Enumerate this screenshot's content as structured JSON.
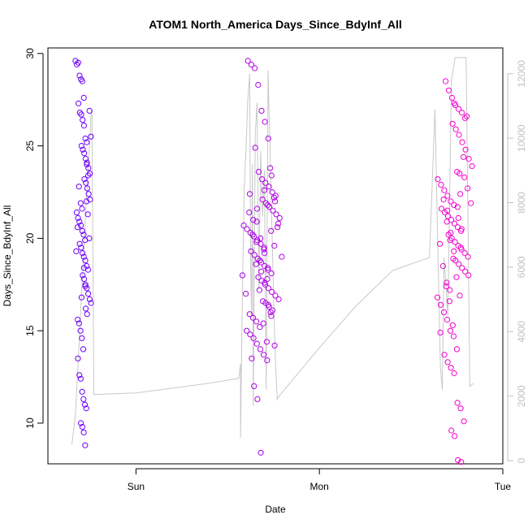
{
  "chart_data": {
    "type": "scatter",
    "title": "ATOM1 North_America Days_Since_BdyInf_All",
    "xlabel": "Date",
    "ylabel": "Days_Since_BdyInf_All",
    "x_ticks": [
      "Sun",
      "Mon",
      "Tue"
    ],
    "y_ticks": [
      10,
      15,
      20,
      25,
      30
    ],
    "y_range": [
      7.8,
      30.3
    ],
    "y2_ticks": [
      0,
      2000,
      4000,
      6000,
      8000,
      10000,
      12000
    ],
    "y2_range": [
      -100,
      12800
    ],
    "x_unit": "days from Sun 00:00",
    "x_range": [
      -0.48,
      2.0
    ],
    "colors": {
      "points_start": "#6a00ff",
      "points_end": "#ff00cc",
      "line": "#c8c8c8",
      "right_axis": "#c0c0c0"
    },
    "clusters": [
      {
        "x_start": -0.33,
        "x_end": -0.24,
        "values": [
          29.6,
          29.4,
          29.5,
          28.8,
          28.6,
          28.5,
          27.6,
          27.3,
          26.8,
          26.7,
          26.4,
          26.1,
          25.4,
          25.2,
          25.0,
          24.8,
          24.6,
          24.3,
          24.1,
          23.8,
          23.5,
          23.2,
          23.0,
          22.7,
          22.4,
          22.1,
          21.9,
          21.6,
          21.4,
          21.1,
          20.9,
          20.7,
          20.4,
          20.2,
          19.9,
          19.7,
          19.5,
          19.2,
          19.0,
          18.8,
          18.5,
          18.3,
          18.0,
          17.8,
          17.5,
          17.3,
          17.0,
          16.7,
          16.5,
          16.2,
          15.9,
          15.6,
          15.4,
          15.0,
          14.6,
          14.0,
          13.5,
          12.6,
          12.4,
          11.7,
          11.3,
          11.0,
          10.8,
          10.0,
          9.8,
          9.5,
          8.8,
          22.0,
          21.3,
          20.0,
          18.4,
          17.4,
          24.0,
          23.4,
          26.9,
          25.5,
          16.8,
          19.3,
          20.6,
          22.8
        ]
      },
      {
        "x_start": 0.58,
        "x_end": 0.8,
        "values": [
          29.6,
          29.4,
          29.2,
          28.3,
          26.9,
          26.3,
          25.4,
          24.9,
          23.6,
          23.2,
          23.0,
          22.8,
          22.5,
          22.3,
          22.1,
          21.9,
          21.7,
          21.5,
          21.3,
          21.1,
          20.9,
          20.7,
          20.5,
          20.3,
          20.1,
          19.9,
          19.7,
          19.5,
          19.3,
          19.1,
          18.9,
          18.7,
          18.5,
          18.3,
          18.1,
          17.9,
          17.7,
          17.5,
          17.3,
          17.1,
          16.9,
          16.7,
          16.5,
          16.3,
          16.1,
          15.9,
          15.7,
          15.5,
          15.2,
          15.0,
          14.8,
          14.6,
          14.3,
          14.0,
          13.7,
          13.4,
          12.0,
          11.3,
          8.4,
          22.6,
          21.8,
          20.4,
          19.6,
          18.2,
          17.6,
          16.4,
          23.4,
          22.0,
          20.8,
          19.0,
          18.0,
          17.0,
          21.4,
          20.2,
          18.6,
          17.2,
          16.6,
          22.4,
          21.0,
          19.8,
          18.8,
          15.4,
          14.4,
          23.8,
          21.6,
          20.0,
          19.4,
          17.8,
          16.0,
          22.2,
          20.6,
          19.2,
          18.4,
          15.8,
          14.2,
          13.5
        ]
      },
      {
        "x_start": 1.63,
        "x_end": 1.84,
        "values": [
          28.5,
          28.0,
          27.6,
          27.2,
          27.0,
          26.8,
          26.5,
          26.2,
          25.9,
          25.6,
          25.2,
          24.8,
          24.3,
          23.9,
          23.5,
          23.2,
          22.9,
          22.6,
          22.3,
          22.0,
          21.8,
          21.6,
          21.4,
          21.2,
          21.0,
          20.8,
          20.6,
          20.4,
          20.2,
          20.0,
          19.8,
          19.6,
          19.4,
          19.2,
          19.0,
          18.8,
          18.6,
          18.4,
          18.2,
          18.0,
          17.6,
          17.2,
          16.8,
          16.4,
          16.0,
          15.6,
          15.0,
          14.7,
          14.0,
          13.7,
          13.3,
          13.0,
          12.7,
          11.1,
          10.8,
          10.1,
          9.6,
          9.3,
          8.0,
          7.9,
          23.3,
          22.7,
          21.9,
          21.1,
          20.5,
          19.7,
          18.5,
          17.4,
          16.6,
          15.3,
          14.9,
          22.1,
          20.9,
          19.9,
          18.9,
          17.9,
          16.9,
          21.5,
          20.3,
          19.3,
          23.6,
          22.4,
          24.4,
          26.6,
          27.3,
          21.7,
          19.5
        ]
      }
    ],
    "line_series": [
      [
        -0.35,
        500
      ],
      [
        -0.33,
        1400
      ],
      [
        -0.32,
        2500
      ],
      [
        -0.31,
        3600
      ],
      [
        -0.3,
        4800
      ],
      [
        -0.29,
        5900
      ],
      [
        -0.28,
        7000
      ],
      [
        -0.27,
        8100
      ],
      [
        -0.26,
        9100
      ],
      [
        -0.25,
        10000
      ],
      [
        -0.245,
        10800
      ],
      [
        -0.24,
        10900
      ],
      [
        -0.23,
        2050
      ],
      [
        0.0,
        2100
      ],
      [
        0.4,
        2400
      ],
      [
        0.56,
        2550
      ],
      [
        0.57,
        3000
      ],
      [
        0.57,
        700
      ],
      [
        0.58,
        5200
      ],
      [
        0.59,
        8400
      ],
      [
        0.6,
        9700
      ],
      [
        0.61,
        11200
      ],
      [
        0.62,
        12000
      ],
      [
        0.625,
        6200
      ],
      [
        0.63,
        4500
      ],
      [
        0.635,
        9200
      ],
      [
        0.64,
        1700
      ],
      [
        0.65,
        10100
      ],
      [
        0.66,
        11100
      ],
      [
        0.67,
        5300
      ],
      [
        0.68,
        9600
      ],
      [
        0.69,
        7600
      ],
      [
        0.7,
        9000
      ],
      [
        0.71,
        2200
      ],
      [
        0.72,
        12100
      ],
      [
        0.73,
        9900
      ],
      [
        0.74,
        7500
      ],
      [
        0.75,
        5200
      ],
      [
        0.76,
        3100
      ],
      [
        0.77,
        1900
      ],
      [
        0.78,
        2000
      ],
      [
        1.0,
        3500
      ],
      [
        1.2,
        4800
      ],
      [
        1.4,
        5900
      ],
      [
        1.6,
        6300
      ],
      [
        1.63,
        10900
      ],
      [
        1.645,
        6800
      ],
      [
        1.66,
        2900
      ],
      [
        1.67,
        2200
      ],
      [
        1.68,
        6300
      ],
      [
        1.7,
        4500
      ],
      [
        1.72,
        11800
      ],
      [
        1.74,
        12500
      ],
      [
        1.76,
        12500
      ],
      [
        1.78,
        12500
      ],
      [
        1.8,
        12500
      ],
      [
        1.82,
        2300
      ],
      [
        1.84,
        2400
      ]
    ]
  }
}
